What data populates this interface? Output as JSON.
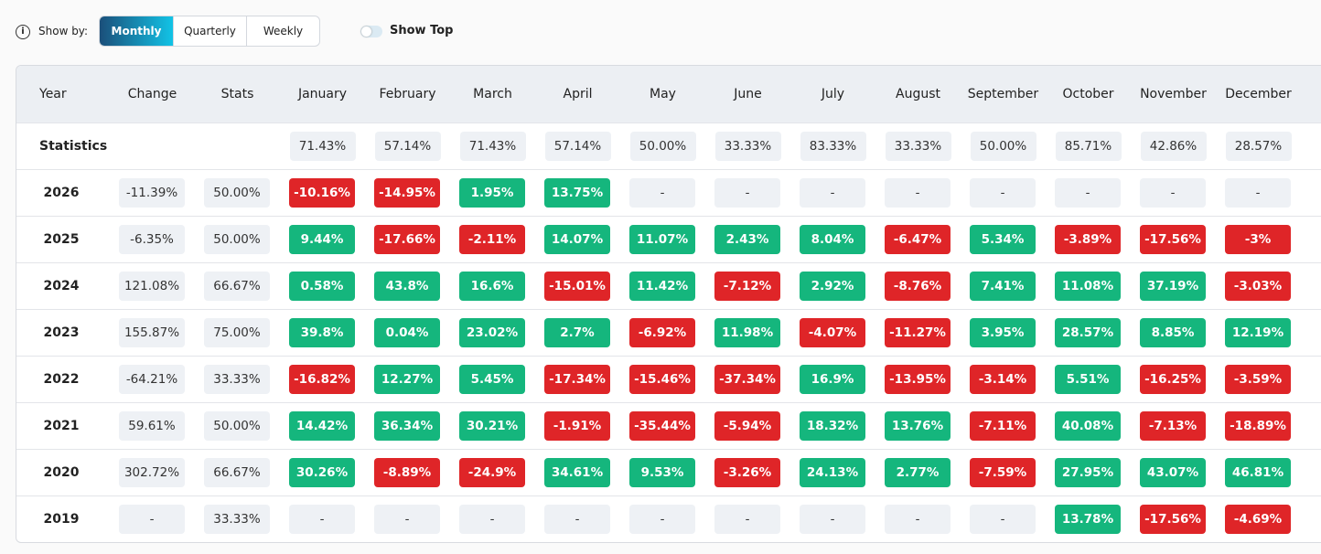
{
  "toolbar": {
    "show_by_label": "Show by:",
    "options": [
      "Monthly",
      "Quarterly",
      "Weekly"
    ],
    "toggle_label": "Show Top"
  },
  "table": {
    "header": [
      "Year",
      "Change",
      "Stats",
      "January",
      "February",
      "March",
      "April",
      "May",
      "June",
      "July",
      "August",
      "September",
      "October",
      "November",
      "December"
    ],
    "statistics": {
      "label": "Statistics",
      "values": [
        "71.43%",
        "57.14%",
        "71.43%",
        "57.14%",
        "50.00%",
        "33.33%",
        "83.33%",
        "33.33%",
        "50.00%",
        "85.71%",
        "42.86%",
        "28.57%"
      ]
    },
    "rows": [
      [
        "2026",
        "-11.39%",
        "50.00%",
        "-10.16%",
        "-14.95%",
        "1.95%",
        "13.75%",
        "-",
        "-",
        "-",
        "-",
        "-",
        "-",
        "-",
        "-"
      ],
      [
        "2025",
        "-6.35%",
        "50.00%",
        "9.44%",
        "-17.66%",
        "-2.11%",
        "14.07%",
        "11.07%",
        "2.43%",
        "8.04%",
        "-6.47%",
        "5.34%",
        "-3.89%",
        "-17.56%",
        "-3%"
      ],
      [
        "2024",
        "121.08%",
        "66.67%",
        "0.58%",
        "43.8%",
        "16.6%",
        "-15.01%",
        "11.42%",
        "-7.12%",
        "2.92%",
        "-8.76%",
        "7.41%",
        "11.08%",
        "37.19%",
        "-3.03%"
      ],
      [
        "2023",
        "155.87%",
        "75.00%",
        "39.8%",
        "0.04%",
        "23.02%",
        "2.7%",
        "-6.92%",
        "11.98%",
        "-4.07%",
        "-11.27%",
        "3.95%",
        "28.57%",
        "8.85%",
        "12.19%"
      ],
      [
        "2022",
        "-64.21%",
        "33.33%",
        "-16.82%",
        "12.27%",
        "5.45%",
        "-17.34%",
        "-15.46%",
        "-37.34%",
        "16.9%",
        "-13.95%",
        "-3.14%",
        "5.51%",
        "-16.25%",
        "-3.59%"
      ],
      [
        "2021",
        "59.61%",
        "50.00%",
        "14.42%",
        "36.34%",
        "30.21%",
        "-1.91%",
        "-35.44%",
        "-5.94%",
        "18.32%",
        "13.76%",
        "-7.11%",
        "40.08%",
        "-7.13%",
        "-18.89%"
      ],
      [
        "2020",
        "302.72%",
        "66.67%",
        "30.26%",
        "-8.89%",
        "-24.9%",
        "34.61%",
        "9.53%",
        "-3.26%",
        "24.13%",
        "2.77%",
        "-7.59%",
        "27.95%",
        "43.07%",
        "46.81%"
      ],
      [
        "2019",
        "-",
        "33.33%",
        "-",
        "-",
        "-",
        "-",
        "-",
        "-",
        "-",
        "-",
        "-",
        "13.78%",
        "-17.56%",
        "-4.69%"
      ]
    ]
  }
}
